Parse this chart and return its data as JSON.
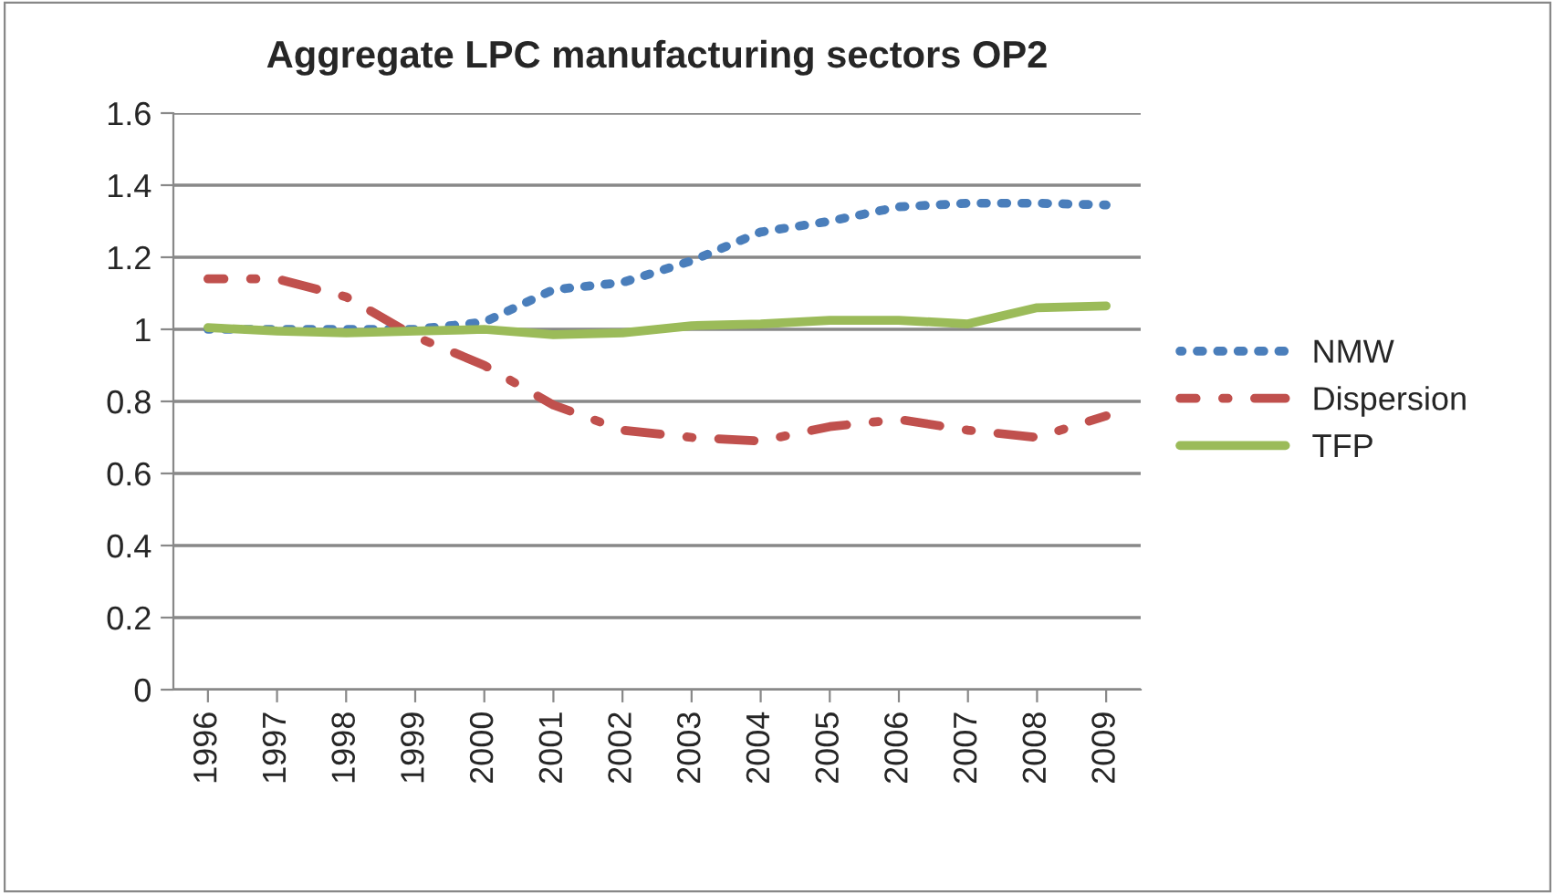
{
  "chart_data": {
    "type": "line",
    "title": "Aggregate LPC manufacturing sectors OP2",
    "categories": [
      "1996",
      "1997",
      "1998",
      "1999",
      "2000",
      "2001",
      "2002",
      "2003",
      "2004",
      "2005",
      "2006",
      "2007",
      "2008",
      "2009"
    ],
    "series": [
      {
        "name": "NMW",
        "color": "#4a7ebb",
        "line_style": "dotted",
        "values": [
          1.0,
          1.0,
          1.0,
          1.0,
          1.02,
          1.11,
          1.13,
          1.19,
          1.27,
          1.3,
          1.34,
          1.35,
          1.35,
          1.345
        ]
      },
      {
        "name": "Dispersion",
        "color": "#c0504d",
        "line_style": "dashdot",
        "values": [
          1.14,
          1.14,
          1.09,
          0.98,
          0.9,
          0.79,
          0.72,
          0.7,
          0.69,
          0.73,
          0.75,
          0.72,
          0.7,
          0.76
        ]
      },
      {
        "name": "TFP",
        "color": "#9bbb59",
        "line_style": "solid",
        "values": [
          1.005,
          0.995,
          0.99,
          0.995,
          1.0,
          0.985,
          0.99,
          1.01,
          1.015,
          1.025,
          1.025,
          1.015,
          1.06,
          1.065
        ]
      }
    ],
    "ylim": [
      0,
      1.6
    ],
    "yticks": [
      0,
      0.2,
      0.4,
      0.6,
      0.8,
      1,
      1.2,
      1.4,
      1.6
    ],
    "grid": "y",
    "legend": "right"
  }
}
